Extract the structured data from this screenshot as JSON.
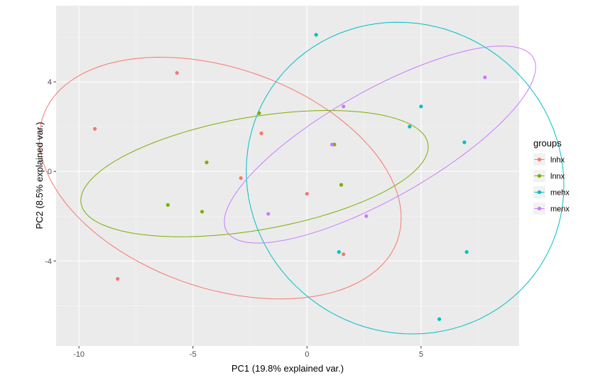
{
  "chart_data": {
    "type": "scatter",
    "title": "",
    "xlabel": "PC1 (19.8% explained var.)",
    "ylabel": "PC2 (8.5% explained var.)",
    "xlim": [
      -11.0,
      9.3
    ],
    "ylim": [
      -7.8,
      7.4
    ],
    "x_ticks": [
      -10,
      -5,
      0,
      5
    ],
    "x_tick_labels": [
      "-10",
      "-5",
      "0",
      "5"
    ],
    "y_ticks": [
      -4,
      0,
      4
    ],
    "y_tick_labels": [
      "-4",
      "0",
      "4"
    ],
    "grid": true,
    "legend": {
      "title": "groups",
      "position": "right"
    },
    "series": [
      {
        "name": "lnhx",
        "color": "#F8766D",
        "points": [
          [
            -9.3,
            1.9
          ],
          [
            -5.7,
            4.4
          ],
          [
            -2.0,
            1.7
          ],
          [
            -2.9,
            -0.3
          ],
          [
            0.0,
            -1.0
          ],
          [
            1.6,
            -3.7
          ],
          [
            -8.3,
            -4.8
          ]
        ],
        "ellipse": {
          "cx": -3.8,
          "cy": -0.3,
          "rx": 8.25,
          "ry": 4.9,
          "angle": -20
        }
      },
      {
        "name": "lnnx",
        "color": "#7CAE00",
        "points": [
          [
            -2.1,
            2.6
          ],
          [
            -4.4,
            0.4
          ],
          [
            -6.1,
            -1.5
          ],
          [
            -4.6,
            -1.8
          ],
          [
            1.5,
            -0.6
          ],
          [
            1.2,
            1.2
          ]
        ],
        "ellipse": {
          "cx": -2.3,
          "cy": -0.1,
          "rx": 7.72,
          "ry": 2.52,
          "angle": 10
        }
      },
      {
        "name": "mehx",
        "color": "#00BFC4",
        "points": [
          [
            0.4,
            6.1
          ],
          [
            5.0,
            2.9
          ],
          [
            4.5,
            2.0
          ],
          [
            6.9,
            1.3
          ],
          [
            7.0,
            -3.6
          ],
          [
            5.8,
            -6.6
          ],
          [
            1.4,
            -3.6
          ]
        ],
        "ellipse": {
          "cx": 4.3,
          "cy": -0.3,
          "rx": 6.8,
          "ry": 7.12,
          "angle": 45
        }
      },
      {
        "name": "menx",
        "color": "#C77CFF",
        "points": [
          [
            1.6,
            2.9
          ],
          [
            7.8,
            4.2
          ],
          [
            1.1,
            1.2
          ],
          [
            -1.7,
            -1.9
          ],
          [
            2.6,
            -2.0
          ]
        ],
        "ellipse": {
          "cx": 3.2,
          "cy": 1.2,
          "rx": 7.76,
          "ry": 2.4,
          "angle": 30
        }
      }
    ]
  }
}
